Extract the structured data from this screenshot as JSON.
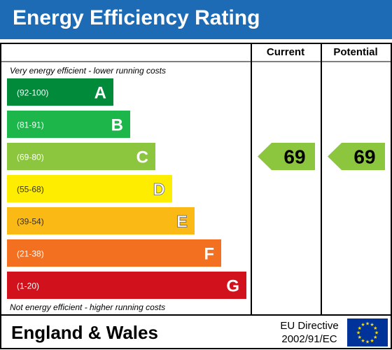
{
  "title": "Energy Efficiency Rating",
  "columns": {
    "current": "Current",
    "potential": "Potential"
  },
  "top_note": "Very energy efficient - lower running costs",
  "bottom_note": "Not energy efficient - higher running costs",
  "footer": {
    "region": "England & Wales",
    "directive_line1": "EU Directive",
    "directive_line2": "2002/91/EC"
  },
  "colors": {
    "header": "#1e6bb5",
    "A": "#008a3a",
    "B": "#1cb64a",
    "C": "#8cc63f",
    "D": "#ffed00",
    "E": "#fbb915",
    "F": "#f37021",
    "G": "#d1111b",
    "flag": "#003399",
    "stars": "#ffde00"
  },
  "chart_data": {
    "type": "bar",
    "bands": [
      {
        "letter": "A",
        "range": "(92-100)",
        "color": "#008a3a"
      },
      {
        "letter": "B",
        "range": "(81-91)",
        "color": "#1cb64a"
      },
      {
        "letter": "C",
        "range": "(69-80)",
        "color": "#8cc63f"
      },
      {
        "letter": "D",
        "range": "(55-68)",
        "color": "#ffed00"
      },
      {
        "letter": "E",
        "range": "(39-54)",
        "color": "#fbb915"
      },
      {
        "letter": "F",
        "range": "(21-38)",
        "color": "#f37021"
      },
      {
        "letter": "G",
        "range": "(1-20)",
        "color": "#d1111b"
      }
    ],
    "current": {
      "value": 69,
      "band": "C"
    },
    "potential": {
      "value": 69,
      "band": "C"
    }
  }
}
